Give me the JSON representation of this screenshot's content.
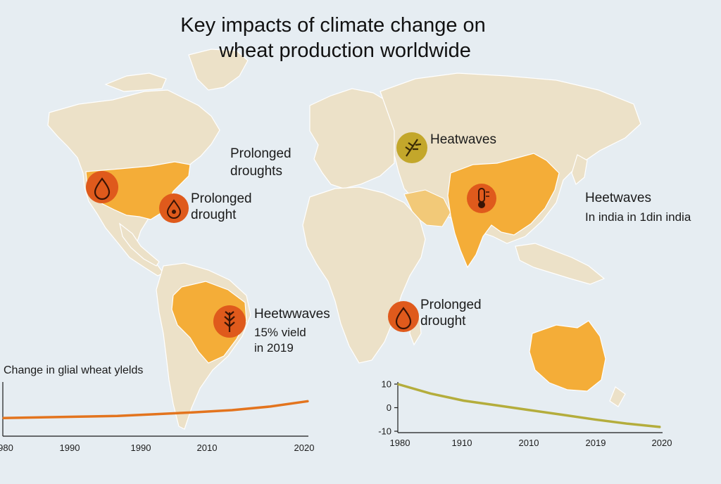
{
  "title_line1": "Key impacts of climate change on",
  "title_line2": "wheat production worldwide",
  "map": {
    "labels": {
      "prolonged_droughts_line1": "Prolonged",
      "prolonged_droughts_line2": "droughts",
      "prolonged_drought_us_line1": "Prolonged",
      "prolonged_drought_us_line2": "drought",
      "heatwaves_russia": "Heatwaves",
      "heatwaves_asia_title": "Heetwaves",
      "heatwaves_asia_sub": "In india in 1din india",
      "heatwaves_brazil_title": "Heetwwaves",
      "heatwaves_brazil_sub1": "15% vield",
      "heatwaves_brazil_sub2": "in 2019",
      "prolonged_drought_africa_line1": "Prolonged",
      "prolonged_drought_africa_line2": "drought"
    },
    "colors": {
      "ocean": "#e6edf2",
      "land": "#ece1c8",
      "affected_region": "#f4ad38",
      "icon_drought": "#df5a1c",
      "icon_heat": "#c3a72b"
    },
    "icons": [
      "water-drop-icon",
      "water-drop-icon",
      "thermometer-icon",
      "wheat-icon",
      "wheat-icon",
      "water-drop-icon"
    ]
  },
  "chart_data": [
    {
      "type": "line",
      "title": "Change in glial wheat ylelds",
      "x_tick_labels": [
        "980",
        "1990",
        "1990",
        "2010",
        "2020"
      ],
      "series": [
        {
          "color": "#e3741e",
          "x": [
            1980,
            1985,
            1990,
            1995,
            2000,
            2005,
            2010,
            2015,
            2020
          ],
          "values": [
            0.0,
            0.02,
            0.04,
            0.06,
            0.11,
            0.16,
            0.22,
            0.32,
            0.47
          ]
        }
      ],
      "ylim": [
        -0.5,
        1.0
      ]
    },
    {
      "type": "line",
      "title": "",
      "x_tick_labels": [
        "1980",
        "1910",
        "2010",
        "2019",
        "2020"
      ],
      "y_ticks": [
        10,
        0,
        -10
      ],
      "series": [
        {
          "color": "#b4ad3c",
          "x": [
            1980,
            1985,
            1990,
            1995,
            2000,
            2005,
            2010,
            2015,
            2020
          ],
          "values": [
            10,
            6,
            3,
            1,
            -1,
            -3,
            -5,
            -6.8,
            -8.2
          ]
        }
      ],
      "ylim": [
        -10,
        10
      ]
    }
  ]
}
